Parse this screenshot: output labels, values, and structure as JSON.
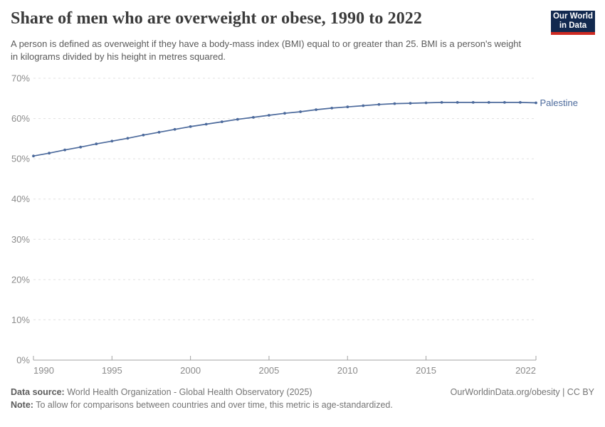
{
  "header": {
    "title": "Share of men who are overweight or obese, 1990 to 2022",
    "subtitle": "A person is defined as overweight if they have a body-mass index (BMI) equal to or greater than 25. BMI is a person's weight in kilograms divided by his height in metres squared.",
    "logo": {
      "line1": "Our World",
      "line2": "in Data"
    }
  },
  "chart_data": {
    "type": "line",
    "title": "Share of men who are overweight or obese, 1990 to 2022",
    "x": [
      1990,
      1991,
      1992,
      1993,
      1994,
      1995,
      1996,
      1997,
      1998,
      1999,
      2000,
      2001,
      2002,
      2003,
      2004,
      2005,
      2006,
      2007,
      2008,
      2009,
      2010,
      2011,
      2012,
      2013,
      2014,
      2015,
      2016,
      2017,
      2018,
      2019,
      2020,
      2021,
      2022
    ],
    "series": [
      {
        "name": "Palestine",
        "values": [
          50.7,
          51.4,
          52.2,
          52.9,
          53.7,
          54.4,
          55.1,
          55.9,
          56.6,
          57.3,
          58.0,
          58.6,
          59.2,
          59.8,
          60.3,
          60.8,
          61.3,
          61.7,
          62.2,
          62.6,
          62.9,
          63.2,
          63.5,
          63.7,
          63.8,
          63.9,
          64.0,
          64.0,
          64.0,
          64.0,
          64.0,
          64.0,
          63.9
        ]
      }
    ],
    "xlabel": "",
    "ylabel": "",
    "xlim": [
      1990,
      2022
    ],
    "ylim": [
      0,
      70
    ],
    "yticks": [
      0,
      10,
      20,
      30,
      40,
      50,
      60,
      70
    ],
    "ytick_suffix": "%",
    "xticks": [
      1990,
      1995,
      2000,
      2005,
      2010,
      2015,
      2022
    ],
    "grid": "horizontal-dashed",
    "legend_position": "end-of-line-label",
    "markers": "dot-every-year"
  },
  "footer": {
    "source_label": "Data source:",
    "source_text": " World Health Organization - Global Health Observatory (2025)",
    "attribution": "OurWorldinData.org/obesity | CC BY",
    "note_label": "Note:",
    "note_text": " To allow for comparisons between countries and over time, this metric is age-standardized."
  },
  "colors": {
    "series_line": "#4C6A9C",
    "series_label": "#4C6A9C",
    "gridline": "#e0e0e0",
    "axis_line": "#a3a3a3",
    "tick_label": "#8b8b8b",
    "title": "#3b3b3b",
    "subtitle": "#5b5b5b",
    "footer_text": "#757575",
    "logo_bg": "#12294f",
    "logo_stripe": "#ce2a22"
  }
}
